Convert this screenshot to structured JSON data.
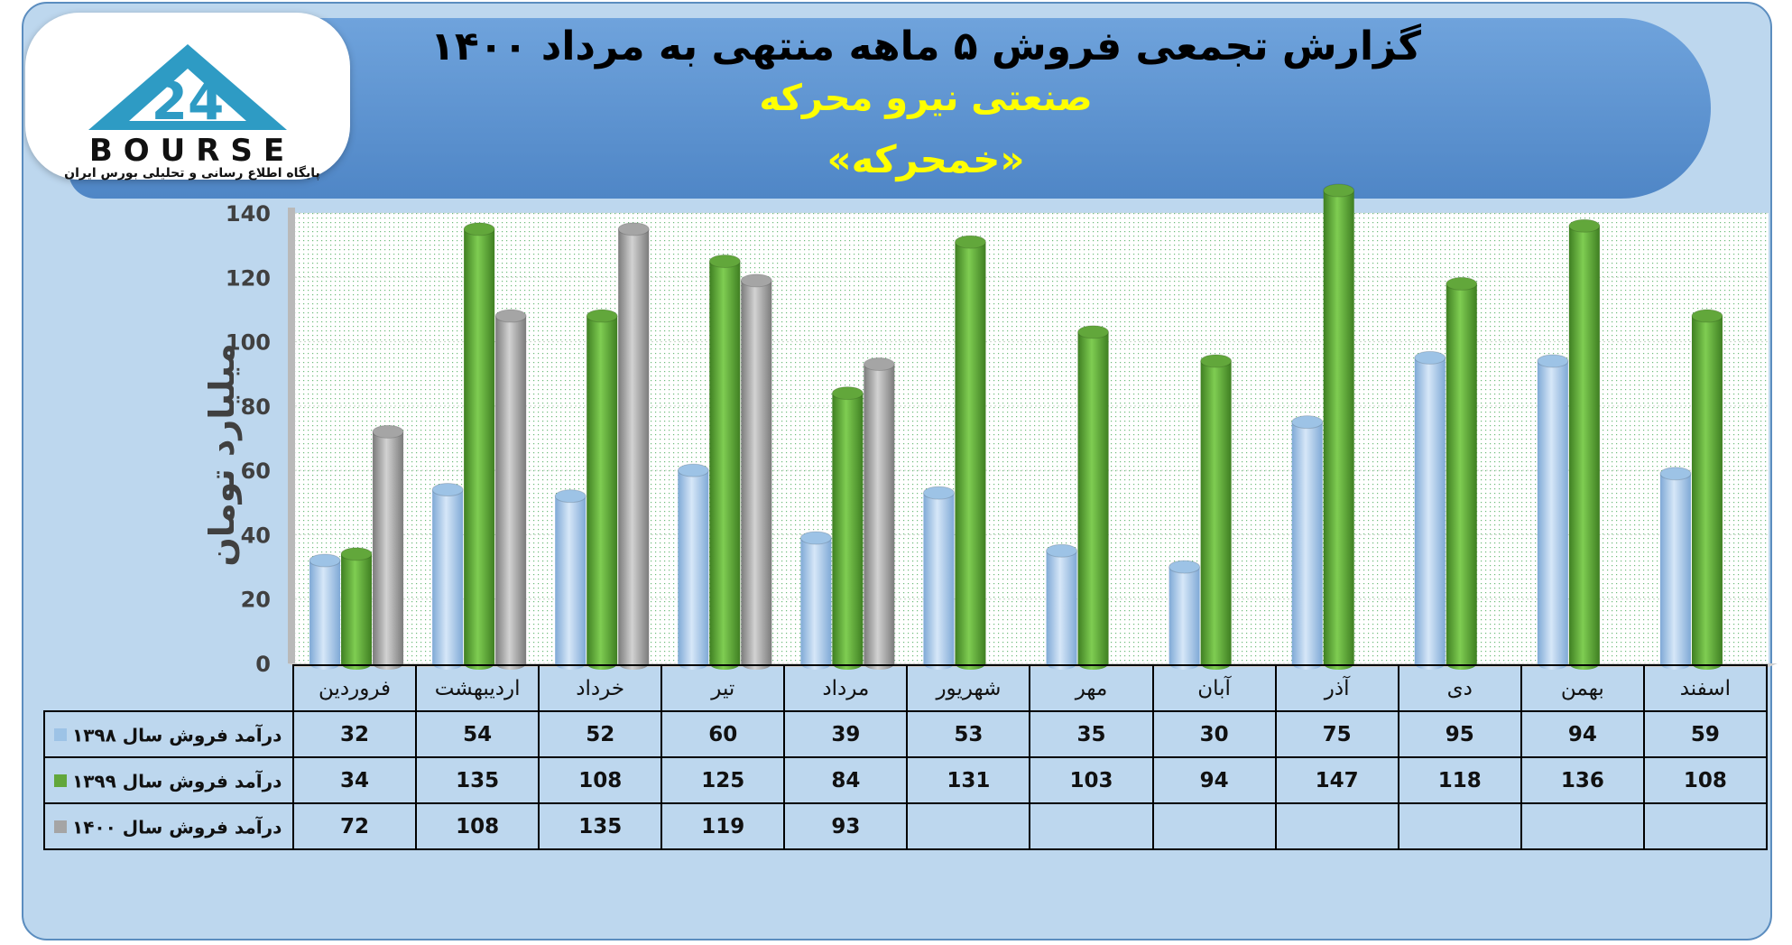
{
  "header": {
    "title": "گزارش تجمعی فروش ۵ ماهه منتهی به مرداد ۱۴۰۰",
    "subtitle": "صنعتی نیرو محرکه",
    "symbol": "«خمحرکه»"
  },
  "logo": {
    "wordmark": "BOURSE",
    "tagline": "پایگاه اطلاع رسانی و تحلیلی بورس ایران",
    "colors": {
      "mark": "#2e9bc4"
    }
  },
  "chart_data": {
    "type": "bar",
    "ylabel": "میلیارد تومان",
    "ylim": [
      0,
      140
    ],
    "yticks": [
      "0",
      "20",
      "40",
      "60",
      "80",
      "100",
      "120",
      "140"
    ],
    "grid": true,
    "legend": "table-left",
    "categories": [
      "فروردین",
      "اردیبهشت",
      "خرداد",
      "تیر",
      "مرداد",
      "شهریور",
      "مهر",
      "آبان",
      "آذر",
      "دی",
      "بهمن",
      "اسفند"
    ],
    "series": [
      {
        "name": "درآمد فروش سال ۱۳۹۸",
        "color": "#9dc3e6",
        "values": [
          32,
          54,
          52,
          60,
          39,
          53,
          35,
          30,
          75,
          95,
          94,
          59
        ]
      },
      {
        "name": "درآمد فروش سال ۱۳۹۹",
        "color": "#62a73b",
        "values": [
          34,
          135,
          108,
          125,
          84,
          131,
          103,
          94,
          147,
          118,
          136,
          108
        ]
      },
      {
        "name": "درآمد فروش سال ۱۴۰۰",
        "color": "#a5a5a5",
        "values": [
          72,
          108,
          135,
          119,
          93,
          null,
          null,
          null,
          null,
          null,
          null,
          null
        ]
      }
    ]
  }
}
